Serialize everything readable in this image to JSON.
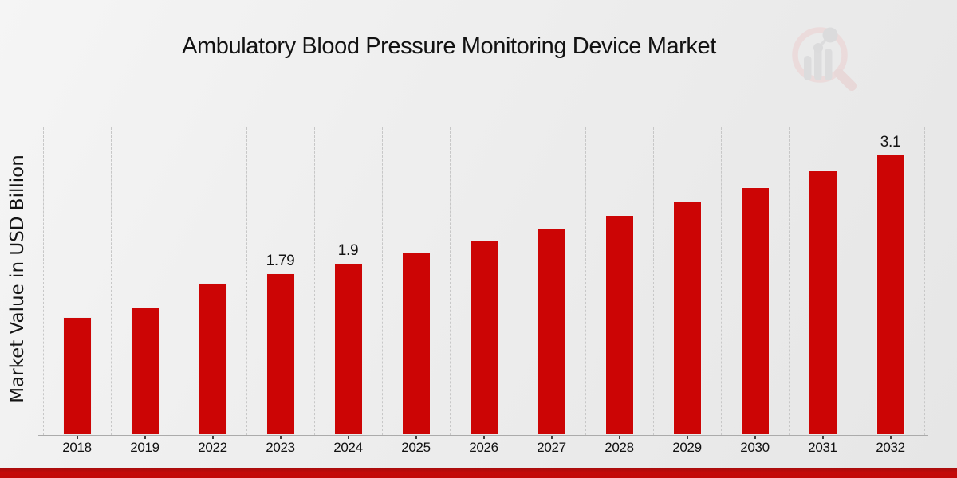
{
  "page": {
    "title": "Ambulatory Blood Pressure Monitoring Device Market",
    "footer_color": "#c40a0a",
    "background_color": "#ececec",
    "watermark_icon": "magnifier-bar-chart-logo"
  },
  "chart_data": {
    "type": "bar",
    "title": "Ambulatory Blood Pressure Monitoring Device Market",
    "xlabel": "",
    "ylabel": "Market Value in USD Billion",
    "categories": [
      "2018",
      "2019",
      "2022",
      "2023",
      "2024",
      "2025",
      "2026",
      "2027",
      "2028",
      "2029",
      "2030",
      "2031",
      "2032"
    ],
    "values": [
      1.3,
      1.41,
      1.68,
      1.79,
      1.9,
      2.02,
      2.15,
      2.28,
      2.43,
      2.58,
      2.74,
      2.92,
      3.1
    ],
    "data_labels": {
      "2023": "1.79",
      "2024": "1.9",
      "2032": "3.1"
    },
    "ylim": [
      0,
      3.4
    ],
    "bar_color": "#cc0505",
    "grid": "vertical-dashed",
    "legend_position": "none",
    "y_axis_ticks_visible": false
  }
}
